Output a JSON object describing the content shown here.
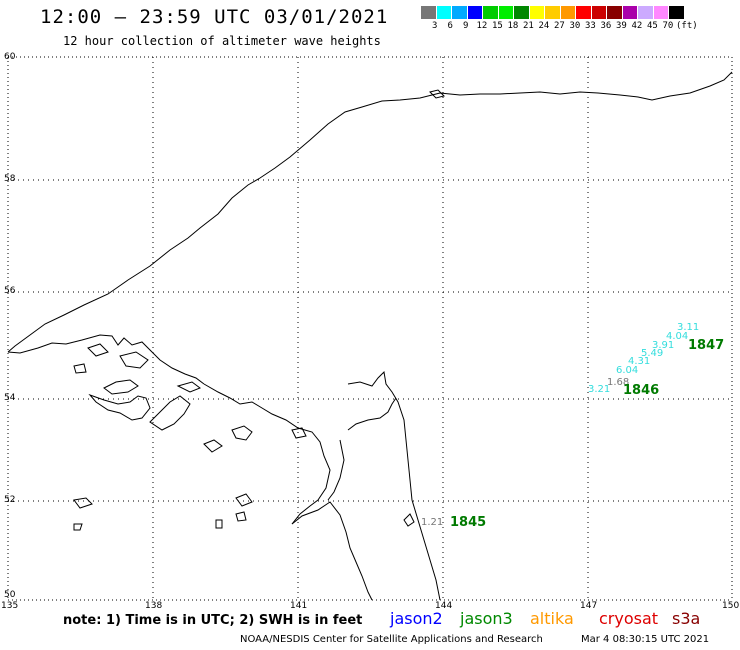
{
  "header": {
    "title": "12:00 – 23:59 UTC 03/01/2021",
    "subtitle": "12 hour collection of altimeter wave heights"
  },
  "scale": {
    "colors": [
      "#777777",
      "#00ffff",
      "#00aaff",
      "#0000ff",
      "#00cc00",
      "#00ee00",
      "#008800",
      "#ffff00",
      "#ffcc00",
      "#ff9900",
      "#ff0000",
      "#cc0000",
      "#880000",
      "#aa00aa",
      "#ccaaff",
      "#ff88ff",
      "#000000"
    ],
    "labels": [
      "3",
      "6",
      "9",
      "12",
      "15",
      "18",
      "21",
      "24",
      "27",
      "30",
      "33",
      "36",
      "39",
      "42",
      "45",
      "70",
      "(ft)"
    ]
  },
  "axes": {
    "lat_labels": [
      "60",
      "58",
      "56",
      "54",
      "52",
      "50"
    ],
    "lon_labels": [
      "135",
      "138",
      "141",
      "144",
      "147",
      "150"
    ]
  },
  "observations": [
    {
      "text": "3.11",
      "color": "#33dddd"
    },
    {
      "text": "4.04",
      "color": "#33dddd"
    },
    {
      "text": "3.91",
      "color": "#33dddd"
    },
    {
      "text": "5.49",
      "color": "#33dddd"
    },
    {
      "text": "4.31",
      "color": "#33dddd"
    },
    {
      "text": "6.04",
      "color": "#33dddd"
    },
    {
      "text": "1.68",
      "color": "#777777"
    },
    {
      "text": "3.21",
      "color": "#33dddd"
    },
    {
      "text": "1.21",
      "color": "#777777"
    }
  ],
  "passes": [
    "1847",
    "1846",
    "1845"
  ],
  "footer": {
    "note": "note:  1) Time is in UTC;  2) SWH is in feet",
    "satellites": [
      {
        "name": "jason2",
        "color": "#0000ff"
      },
      {
        "name": "jason3",
        "color": "#008800"
      },
      {
        "name": "altika",
        "color": "#ff9900"
      },
      {
        "name": "cryosat",
        "color": "#dd0000"
      },
      {
        "name": "s3a",
        "color": "#880000"
      }
    ],
    "credit": "NOAA/NESDIS Center for Satellite Applications and Research",
    "timestamp": "Mar  4 08:30:15 UTC 2021"
  }
}
